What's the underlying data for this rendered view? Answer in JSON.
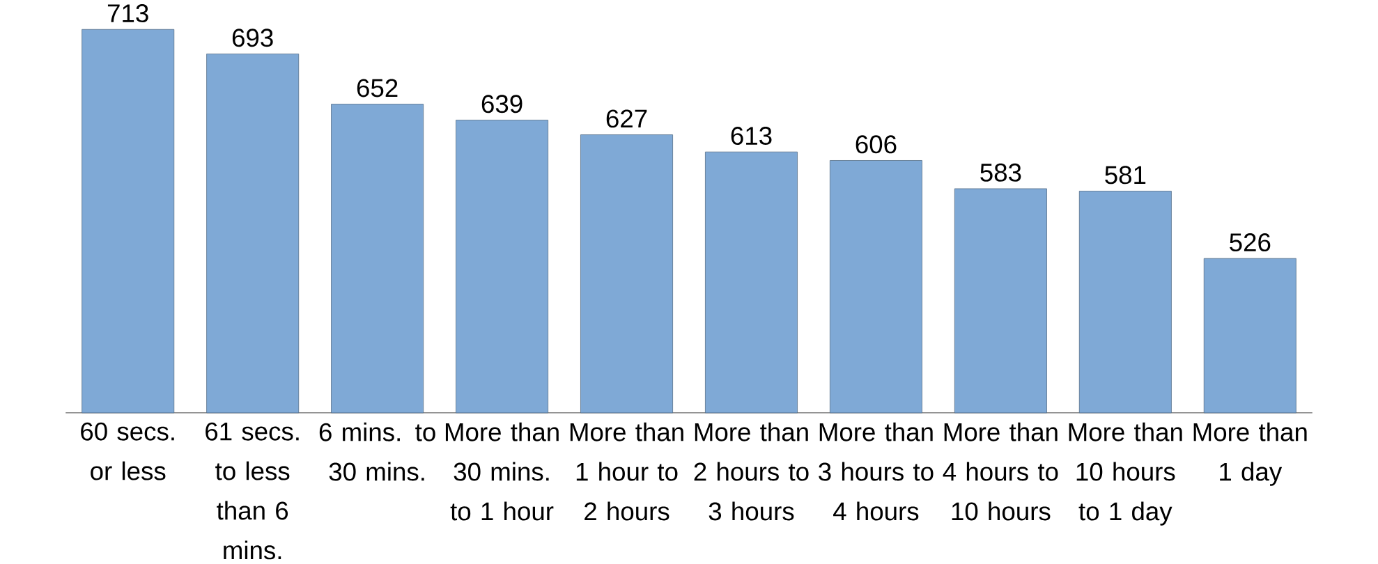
{
  "chart_data": {
    "type": "bar",
    "categories": [
      "60 secs. or less",
      "61 secs. to less than 6 mins.",
      "6 mins. to 30 mins.",
      "More than 30 mins. to 1 hour",
      "More than 1 hour to 2 hours",
      "More than 2 hours to 3 hours",
      "More than 3 hours to 4 hours",
      "More than 4 hours to 10 hours",
      "More than 10 hours to 1 day",
      "More than 1 day"
    ],
    "values": [
      713,
      693,
      652,
      639,
      627,
      613,
      606,
      583,
      581,
      526
    ],
    "color": "#7fa9d6",
    "ylim": [
      400,
      713
    ],
    "data_labels": true
  }
}
